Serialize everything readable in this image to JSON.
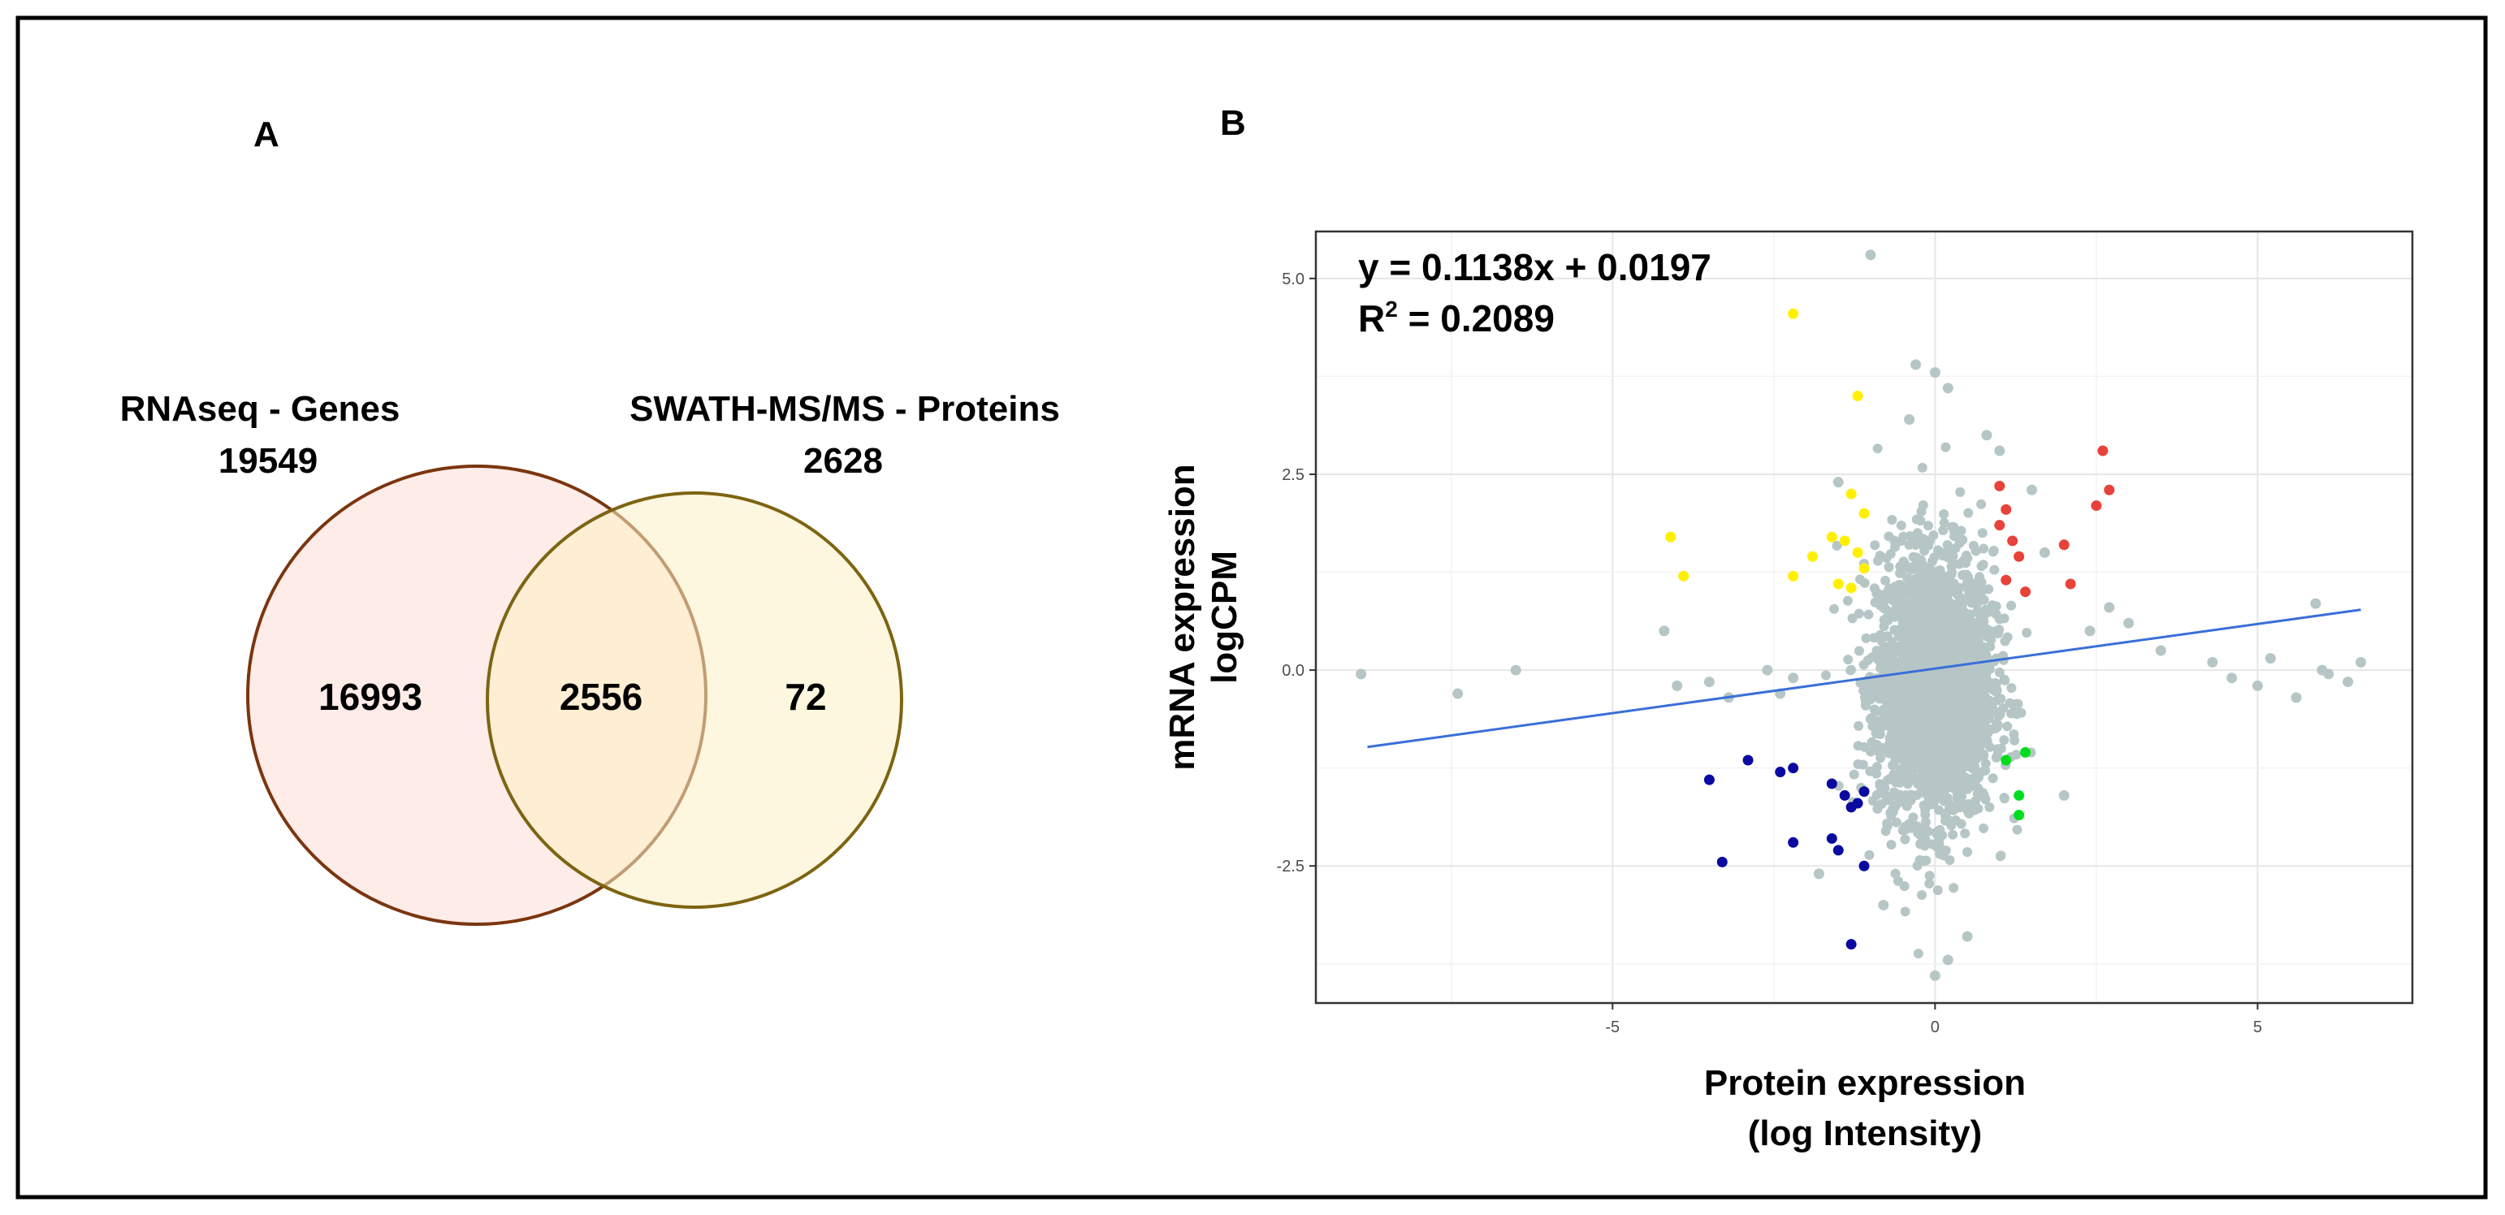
{
  "panel_a": {
    "label": "A",
    "set_left": {
      "title": "RNAseq - Genes",
      "total": "19549",
      "only": "16993",
      "fill": "#fde9e3",
      "stroke": "#7b3510"
    },
    "set_right": {
      "title": "SWATH-MS/MS - Proteins",
      "total": "2628",
      "only": "72",
      "fill": "#fdf0c5",
      "stroke": "#7d6412"
    },
    "intersection": "2556"
  },
  "panel_b": {
    "label": "B",
    "equation": "y = 0.1138x + 0.0197",
    "r2_prefix": "R",
    "r2_sup": "2",
    "r2_value": " = 0.2089"
  },
  "chart_data": {
    "type": "scatter",
    "xlabel_line1": "Protein expression",
    "xlabel_line2": "(log Intensity)",
    "ylabel_line1": "mRNA expression",
    "ylabel_line2": "logCPM",
    "xlim": [
      -9.6,
      7.4
    ],
    "ylim": [
      -4.25,
      5.6
    ],
    "x_ticks": [
      -5,
      0,
      5
    ],
    "x_tick_labels": [
      "-5",
      "0",
      "5"
    ],
    "y_ticks": [
      -2.5,
      0,
      2.5,
      5
    ],
    "y_tick_labels": [
      "-2.5",
      "0.0",
      "2.5",
      "5.0"
    ],
    "fit_line": {
      "slope": 0.1138,
      "intercept": 0.0197,
      "x_range": [
        -8.8,
        6.6
      ],
      "color": "#3a6fd8"
    },
    "background_cloud": {
      "color": "#b6c6c6",
      "n": 2556,
      "center": [
        0,
        -0.2
      ],
      "sd": [
        0.45,
        0.85
      ]
    },
    "series": [
      {
        "name": "grey",
        "color": "#b6c6c6",
        "x": [
          -8.9,
          -7.4,
          -6.5,
          -4.2,
          -4.0,
          -3.5,
          -3.2,
          -2.6,
          -2.4,
          -2.2,
          -1.0,
          -0.3,
          0.0,
          0.2,
          -0.4,
          0.8,
          1.7,
          2.4,
          2.7,
          3.0,
          3.5,
          4.3,
          4.6,
          5.0,
          5.2,
          5.6,
          5.9,
          6.0,
          6.1,
          6.4,
          6.6,
          -1.5,
          1.5,
          1.0,
          -1.8,
          2.0,
          -0.8,
          0.5,
          0.0,
          0.2
        ],
        "y": [
          -0.05,
          -0.3,
          0.0,
          0.5,
          -0.2,
          -0.15,
          -0.35,
          0.0,
          -0.3,
          -0.1,
          5.3,
          3.9,
          3.8,
          3.6,
          3.2,
          3.0,
          1.5,
          0.5,
          0.8,
          0.6,
          0.25,
          0.1,
          -0.1,
          -0.2,
          0.15,
          -0.35,
          0.85,
          0.0,
          -0.05,
          -0.15,
          0.1,
          2.4,
          2.3,
          2.8,
          -2.6,
          -1.6,
          -3.0,
          -3.4,
          -3.9,
          -3.7
        ]
      },
      {
        "name": "yellow",
        "color": "#fff000",
        "x": [
          -2.2,
          -1.2,
          -4.1,
          -3.9,
          -2.2,
          -1.3,
          -1.1,
          -1.6,
          -1.4,
          -1.2,
          -1.1,
          -1.9,
          -1.5,
          -1.3
        ],
        "y": [
          4.55,
          3.5,
          1.7,
          1.2,
          1.2,
          2.25,
          2.0,
          1.7,
          1.65,
          1.5,
          1.3,
          1.45,
          1.1,
          1.05
        ],
        "highlight": true
      },
      {
        "name": "red",
        "color": "#e8423a",
        "x": [
          1.0,
          1.1,
          1.0,
          1.2,
          1.3,
          1.1,
          1.4,
          2.0,
          2.1,
          2.5,
          2.6,
          2.7
        ],
        "y": [
          2.35,
          2.05,
          1.85,
          1.65,
          1.45,
          1.15,
          1.0,
          1.6,
          1.1,
          2.1,
          2.8,
          2.3
        ],
        "highlight": true
      },
      {
        "name": "green",
        "color": "#00dd1e",
        "x": [
          1.1,
          1.4,
          1.3,
          1.3
        ],
        "y": [
          -1.15,
          -1.05,
          -1.6,
          -1.85
        ],
        "highlight": true
      },
      {
        "name": "navy",
        "color": "#0a0aa0",
        "x": [
          -3.5,
          -2.9,
          -2.4,
          -2.2,
          -1.6,
          -1.4,
          -1.2,
          -1.1,
          -1.3,
          -1.6,
          -1.5,
          -2.2,
          -3.3,
          -1.1,
          -1.3
        ],
        "y": [
          -1.4,
          -1.15,
          -1.3,
          -1.25,
          -1.45,
          -1.6,
          -1.7,
          -1.55,
          -1.75,
          -2.15,
          -2.3,
          -2.2,
          -2.45,
          -2.5,
          -3.5
        ],
        "highlight": true
      }
    ]
  }
}
